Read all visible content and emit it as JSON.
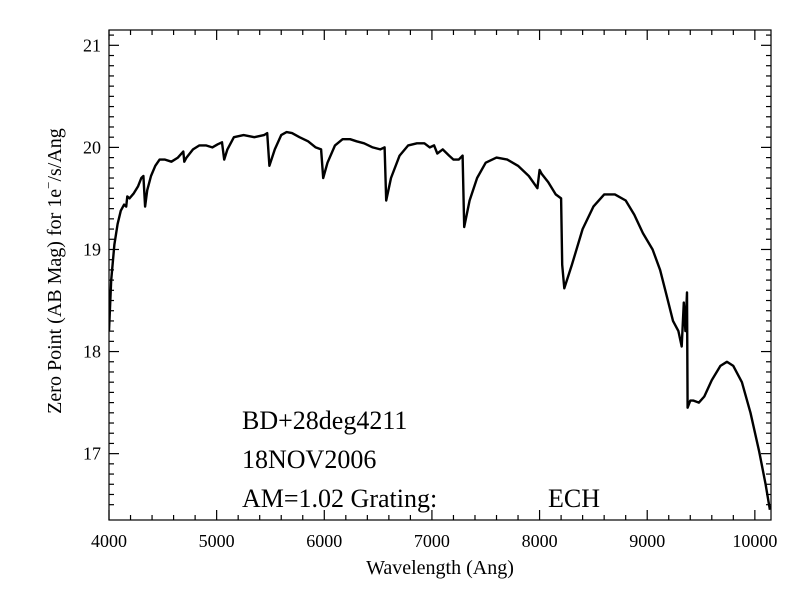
{
  "chart_data": {
    "type": "line",
    "xlabel": "Wavelength (Ang)",
    "ylabel_parts": [
      "Zero Point (AB Mag) for 1e",
      "−",
      "/s/Ang"
    ],
    "xlim": [
      4000,
      10150
    ],
    "ylim": [
      16.35,
      21.15
    ],
    "xticks": [
      4000,
      5000,
      6000,
      7000,
      8000,
      9000,
      10000
    ],
    "yticks": [
      17,
      18,
      19,
      20,
      21
    ],
    "grid": false,
    "annotations": [
      "BD+28deg4211",
      "18NOV2006",
      "AM=1.02  Grating:",
      "ECH"
    ],
    "series": [
      {
        "color": "#000000",
        "points": [
          [
            4000,
            18.2
          ],
          [
            4020,
            18.7
          ],
          [
            4050,
            19.05
          ],
          [
            4080,
            19.25
          ],
          [
            4110,
            19.38
          ],
          [
            4140,
            19.44
          ],
          [
            4160,
            19.42
          ],
          [
            4170,
            19.52
          ],
          [
            4190,
            19.5
          ],
          [
            4230,
            19.55
          ],
          [
            4270,
            19.62
          ],
          [
            4300,
            19.7
          ],
          [
            4320,
            19.72
          ],
          [
            4335,
            19.42
          ],
          [
            4355,
            19.58
          ],
          [
            4390,
            19.72
          ],
          [
            4430,
            19.82
          ],
          [
            4470,
            19.88
          ],
          [
            4520,
            19.88
          ],
          [
            4580,
            19.86
          ],
          [
            4640,
            19.9
          ],
          [
            4690,
            19.96
          ],
          [
            4700,
            19.86
          ],
          [
            4720,
            19.9
          ],
          [
            4780,
            19.98
          ],
          [
            4840,
            20.02
          ],
          [
            4900,
            20.02
          ],
          [
            4960,
            20.0
          ],
          [
            5010,
            20.03
          ],
          [
            5050,
            20.05
          ],
          [
            5070,
            19.88
          ],
          [
            5100,
            19.98
          ],
          [
            5160,
            20.1
          ],
          [
            5250,
            20.12
          ],
          [
            5350,
            20.1
          ],
          [
            5440,
            20.12
          ],
          [
            5470,
            20.14
          ],
          [
            5490,
            19.82
          ],
          [
            5540,
            19.98
          ],
          [
            5600,
            20.12
          ],
          [
            5650,
            20.15
          ],
          [
            5700,
            20.14
          ],
          [
            5770,
            20.1
          ],
          [
            5850,
            20.06
          ],
          [
            5920,
            20.0
          ],
          [
            5970,
            19.98
          ],
          [
            5990,
            19.7
          ],
          [
            6030,
            19.85
          ],
          [
            6100,
            20.02
          ],
          [
            6170,
            20.08
          ],
          [
            6240,
            20.08
          ],
          [
            6300,
            20.06
          ],
          [
            6370,
            20.04
          ],
          [
            6450,
            20.0
          ],
          [
            6520,
            19.98
          ],
          [
            6560,
            20.0
          ],
          [
            6575,
            19.48
          ],
          [
            6620,
            19.7
          ],
          [
            6700,
            19.92
          ],
          [
            6780,
            20.02
          ],
          [
            6860,
            20.04
          ],
          [
            6930,
            20.04
          ],
          [
            6980,
            20.0
          ],
          [
            7020,
            20.02
          ],
          [
            7050,
            19.94
          ],
          [
            7100,
            19.98
          ],
          [
            7160,
            19.92
          ],
          [
            7200,
            19.88
          ],
          [
            7250,
            19.88
          ],
          [
            7285,
            19.92
          ],
          [
            7300,
            19.22
          ],
          [
            7350,
            19.48
          ],
          [
            7420,
            19.7
          ],
          [
            7500,
            19.85
          ],
          [
            7600,
            19.9
          ],
          [
            7700,
            19.88
          ],
          [
            7800,
            19.82
          ],
          [
            7900,
            19.72
          ],
          [
            7980,
            19.6
          ],
          [
            8000,
            19.78
          ],
          [
            8020,
            19.74
          ],
          [
            8080,
            19.66
          ],
          [
            8150,
            19.54
          ],
          [
            8200,
            19.5
          ],
          [
            8210,
            18.85
          ],
          [
            8230,
            18.62
          ],
          [
            8300,
            18.85
          ],
          [
            8400,
            19.2
          ],
          [
            8500,
            19.42
          ],
          [
            8600,
            19.54
          ],
          [
            8700,
            19.54
          ],
          [
            8800,
            19.48
          ],
          [
            8880,
            19.34
          ],
          [
            8960,
            19.16
          ],
          [
            9050,
            19.0
          ],
          [
            9120,
            18.8
          ],
          [
            9180,
            18.55
          ],
          [
            9240,
            18.3
          ],
          [
            9290,
            18.2
          ],
          [
            9320,
            18.05
          ],
          [
            9340,
            18.48
          ],
          [
            9355,
            18.2
          ],
          [
            9370,
            18.58
          ],
          [
            9375,
            17.45
          ],
          [
            9400,
            17.52
          ],
          [
            9430,
            17.52
          ],
          [
            9480,
            17.5
          ],
          [
            9530,
            17.56
          ],
          [
            9600,
            17.72
          ],
          [
            9680,
            17.86
          ],
          [
            9740,
            17.9
          ],
          [
            9800,
            17.86
          ],
          [
            9880,
            17.7
          ],
          [
            9960,
            17.4
          ],
          [
            10040,
            17.02
          ],
          [
            10100,
            16.7
          ],
          [
            10140,
            16.45
          ]
        ]
      }
    ]
  }
}
